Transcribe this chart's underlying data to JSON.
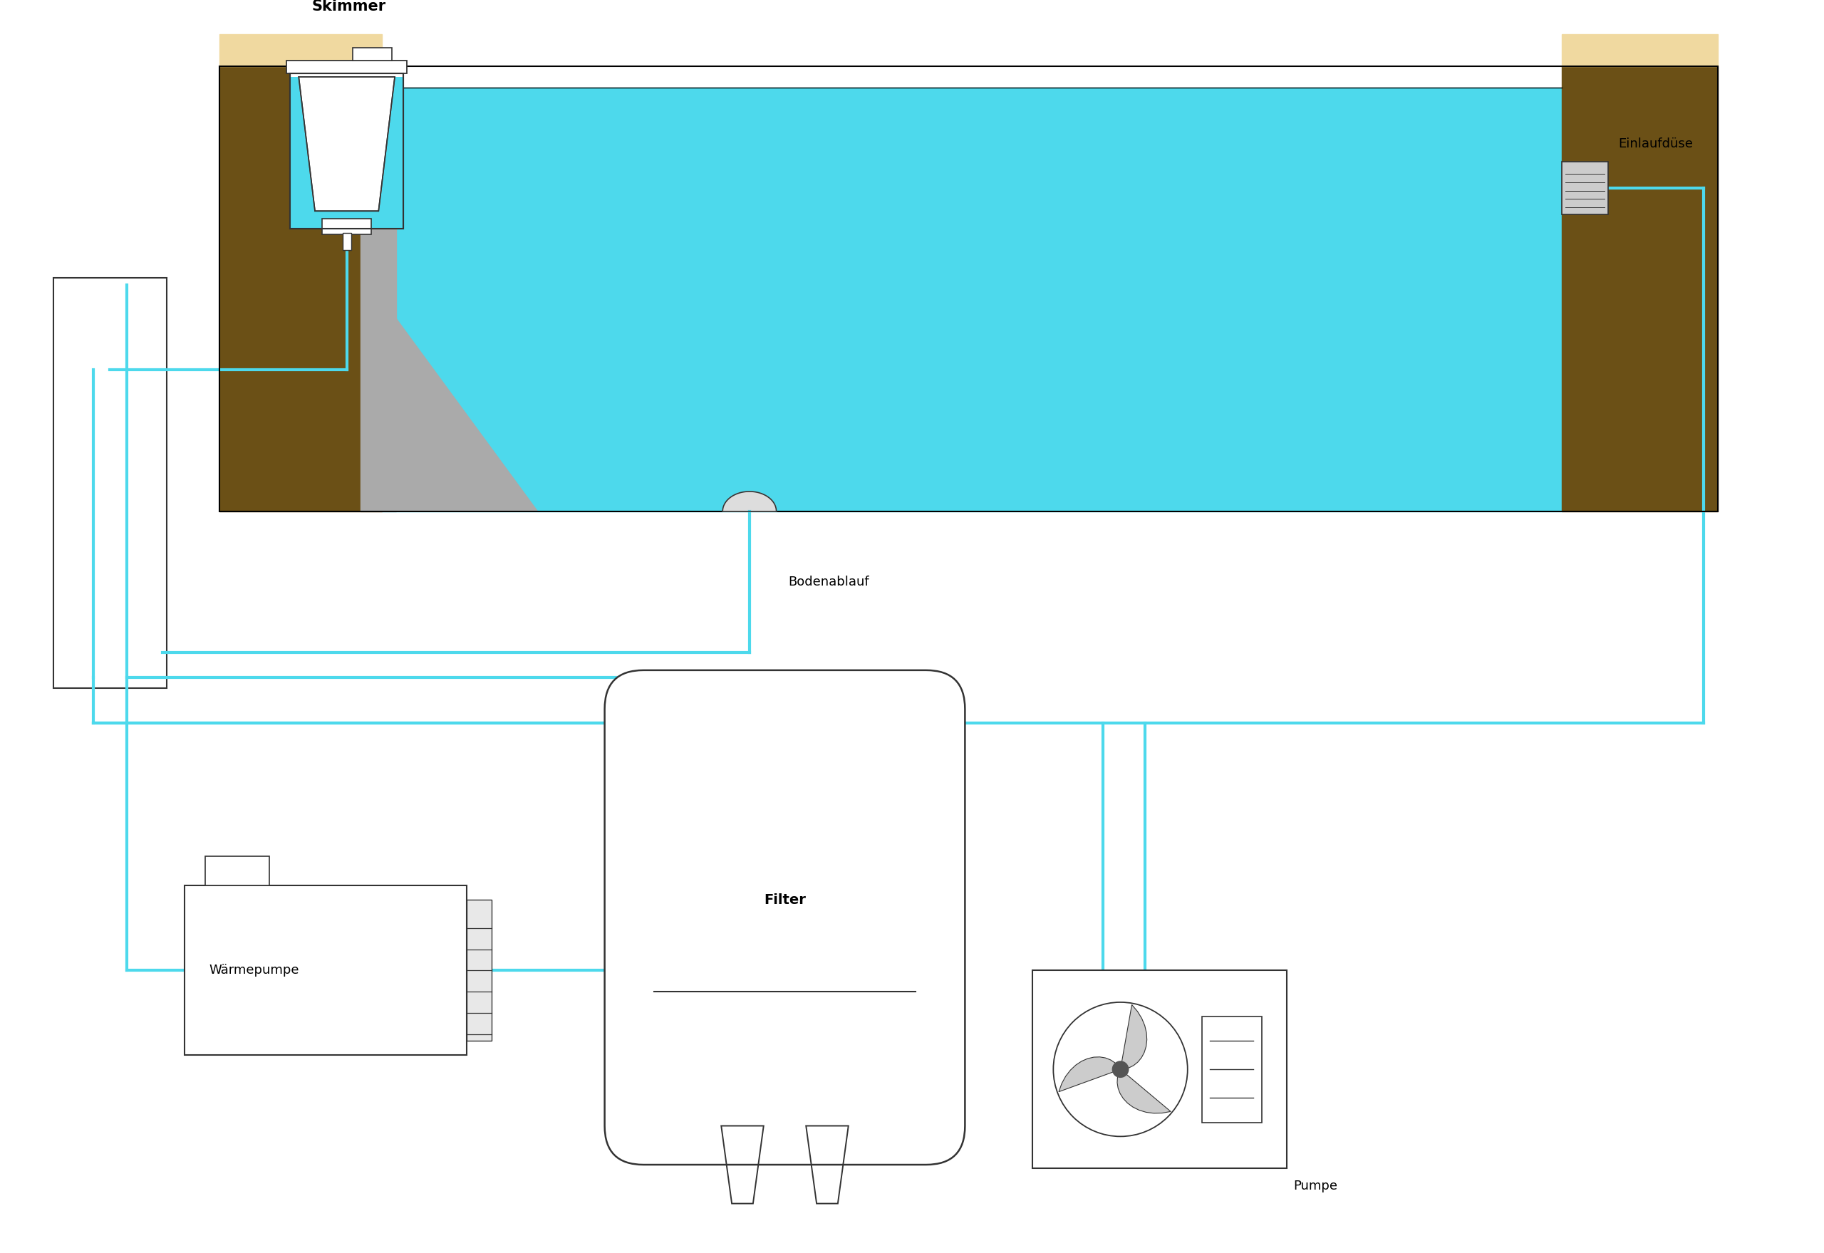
{
  "bg_color": "#ffffff",
  "pool_water_color": "#4dd9ec",
  "pool_wall_color": "#6b5016",
  "pool_concrete_color": "#aaaaaa",
  "pipe_color": "#4dd9ec",
  "pipe_lw": 3.0,
  "ec": "#333333",
  "fc": "#ffffff",
  "tile_color": "#f0d9a0",
  "label_skimmer": "Skimmer",
  "label_einlaufduese": "Einlaufdüse",
  "label_bodenablauf": "Bodenablauf",
  "label_filter": "Filter",
  "label_waermepumpe": "Wärmepumpe",
  "label_pumpe": "Pumpe",
  "font_size": 13
}
